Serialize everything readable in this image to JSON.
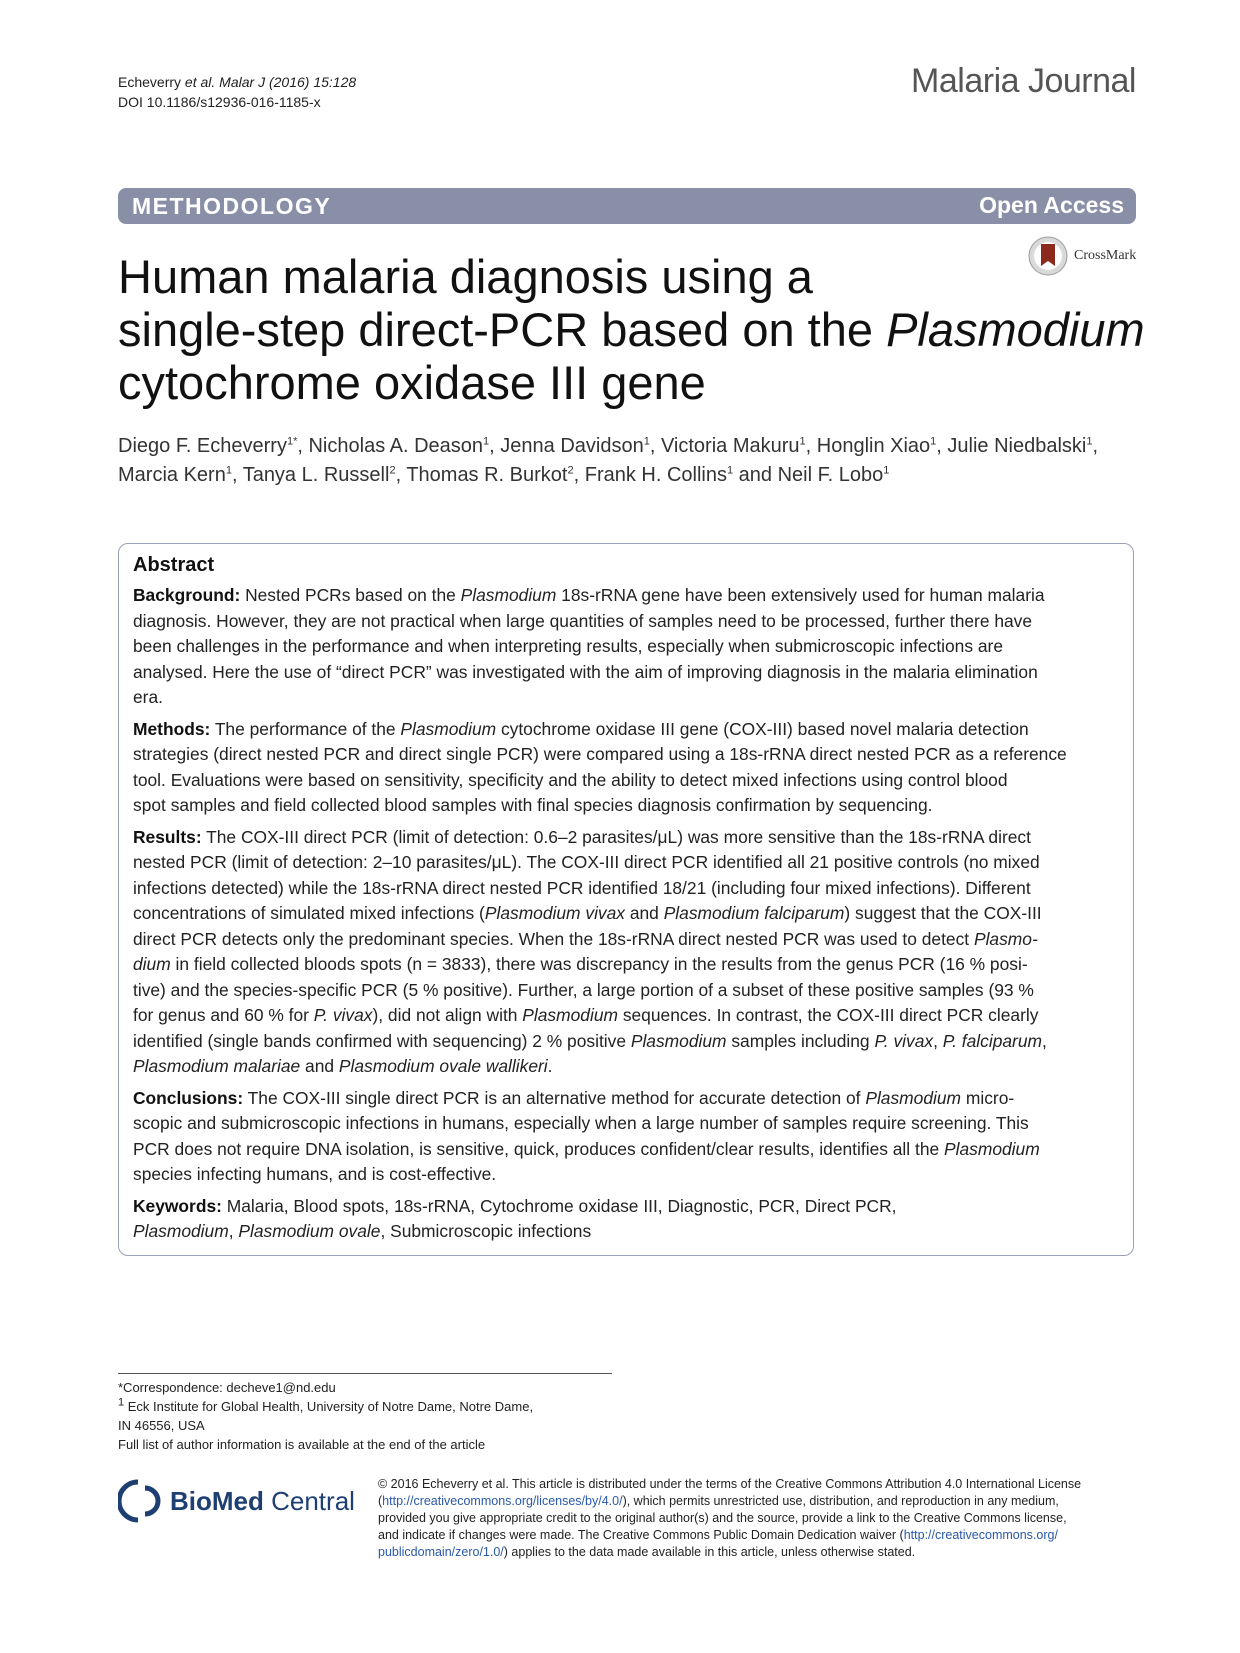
{
  "header": {
    "cite_author": "Echeverry",
    "cite_etal": "et al.",
    "cite_journal": "Malar J",
    "cite_rest": "(2016) 15:128",
    "doi": "DOI 10.1186/s12936-016-1185-x",
    "journal_name": "Malaria Journal"
  },
  "bar": {
    "section": "METHODOLOGY",
    "access": "Open Access"
  },
  "crossmark": "CrossMark",
  "title": {
    "l1": "Human malaria diagnosis using a",
    "l2a": "single-step direct-PCR based on the ",
    "l2b": "Plasmodium",
    "l3": "cytochrome oxidase III gene"
  },
  "authors": {
    "a1": "Diego F. Echeverry",
    "a1s": "1*",
    "a2": ", Nicholas A. Deason",
    "a2s": "1",
    "a3": ", Jenna Davidson",
    "a3s": "1",
    "a4": ", Victoria Makuru",
    "a4s": "1",
    "a5": ", Honglin Xiao",
    "a5s": "1",
    "a6": ", Julie Niedbalski",
    "a6s": "1",
    "a6e": ",",
    "b1": "Marcia Kern",
    "b1s": "1",
    "b2": ", Tanya L. Russell",
    "b2s": "2",
    "b3": ", Thomas R. Burkot",
    "b3s": "2",
    "b4": ", Frank H. Collins",
    "b4s": "1",
    "b5": " and Neil F. Lobo",
    "b5s": "1"
  },
  "abstract": {
    "heading": "Abstract",
    "bg_label": "Background:",
    "bg": [
      [
        "  Nested PCRs based on the ",
        "Plasmodium",
        " 18s-rRNA gene have been extensively used for human malaria"
      ],
      [
        "diagnosis. However, they are not practical when large quantities of samples need to be processed, further there have"
      ],
      [
        "been challenges in the performance and when interpreting results, especially when submicroscopic infections are"
      ],
      [
        "analysed. Here the use of “direct PCR” was investigated with the aim of improving diagnosis in the malaria elimination"
      ],
      [
        "era."
      ]
    ],
    "m_label": "Methods:",
    "m": [
      [
        "  The performance of the ",
        "Plasmodium",
        " cytochrome oxidase III gene (COX-III) based novel malaria detection"
      ],
      [
        "strategies (direct nested PCR and direct single PCR) were compared using a 18s-rRNA direct nested PCR as a reference"
      ],
      [
        "tool. Evaluations were based on sensitivity, specificity and the ability to detect mixed infections using control blood"
      ],
      [
        "spot samples and field collected blood samples with final species diagnosis confirmation by sequencing."
      ]
    ],
    "r_label": "Results:",
    "r": [
      [
        "  The COX-III direct PCR (limit of detection: 0.6–2 parasites/μL) was more sensitive than the 18s-rRNA direct"
      ],
      [
        "nested PCR (limit of detection: 2–10 parasites/μL). The COX-III direct PCR identified all 21 positive controls (no mixed"
      ],
      [
        "infections detected) while the 18s-rRNA direct nested PCR identified 18/21 (including four mixed infections). Different"
      ],
      [
        "concentrations of simulated mixed infections (",
        "Plasmodium vivax",
        " and ",
        "Plasmodium falciparum",
        ") suggest that the COX-III"
      ],
      [
        "direct PCR detects only the predominant species. When the 18s-rRNA direct nested PCR was used to detect ",
        "Plasmo-"
      ],
      [
        "",
        "dium",
        " in field collected bloods spots (n = 3833), there was discrepancy in the results from the genus PCR (16 % posi-"
      ],
      [
        "tive) and the species-specific PCR (5 % positive). Further, a large portion of a subset of these positive samples (93 %"
      ],
      [
        "for genus and 60 % for ",
        "P. vivax",
        "), did not align with ",
        "Plasmodium",
        " sequences. In contrast, the COX-III direct PCR clearly"
      ],
      [
        "identified (single bands confirmed with sequencing) 2 % positive ",
        "Plasmodium",
        " samples including ",
        "P. vivax",
        ", ",
        "P. falciparum",
        ","
      ],
      [
        "",
        "Plasmodium malariae",
        " and ",
        "Plasmodium ovale wallikeri",
        "."
      ]
    ],
    "c_label": "Conclusions:",
    "c": [
      [
        "  The COX-III single direct PCR is an alternative method for accurate detection of ",
        "Plasmodium",
        " micro-"
      ],
      [
        "scopic and submicroscopic infections in humans, especially when a large number of samples require screening. This"
      ],
      [
        "PCR does not require DNA isolation, is sensitive, quick, produces confident/clear results, identifies all the ",
        "Plasmodium"
      ],
      [
        "species infecting humans, and is cost-effective."
      ]
    ],
    "k_label": "Keywords:",
    "k": [
      [
        "  Malaria, Blood spots, 18s-rRNA, Cytochrome oxidase III, Diagnostic, PCR, Direct PCR,"
      ],
      [
        "",
        "Plasmodium",
        ", ",
        "Plasmodium ovale",
        ", Submicroscopic infections"
      ]
    ]
  },
  "footnotes": {
    "l1": "*Correspondence:  decheve1@nd.edu",
    "l2s": "1",
    "l2": " Eck Institute for Global Health, University of Notre Dame, Notre Dame,",
    "l3": "IN 46556, USA",
    "l4": "Full list of author information is available at the end of the article"
  },
  "publisher": {
    "bold": "BioMed",
    "rest": " Central"
  },
  "license": {
    "l1": "© 2016 Echeverry et al. This article is distributed under the terms of the Creative Commons Attribution 4.0 International License",
    "l2a": "(",
    "l2link": "http://creativecommons.org/licenses/by/4.0/",
    "l2b": "), which permits unrestricted use, distribution, and reproduction in any medium,",
    "l3": "provided you give appropriate credit to the original author(s) and the source, provide a link to the Creative Commons license,",
    "l4a": "and indicate if changes were made. The Creative Commons Public Domain Dedication waiver (",
    "l4link": "http://creativecommons.org/",
    "l5link": "publicdomain/zero/1.0/",
    "l5b": ") applies to the data made available in this article, unless otherwise stated."
  },
  "colors": {
    "bar": "#8a8fa8",
    "box_border": "#9aa0b8",
    "publisher": "#1e3f72",
    "link": "#2a59a8"
  }
}
